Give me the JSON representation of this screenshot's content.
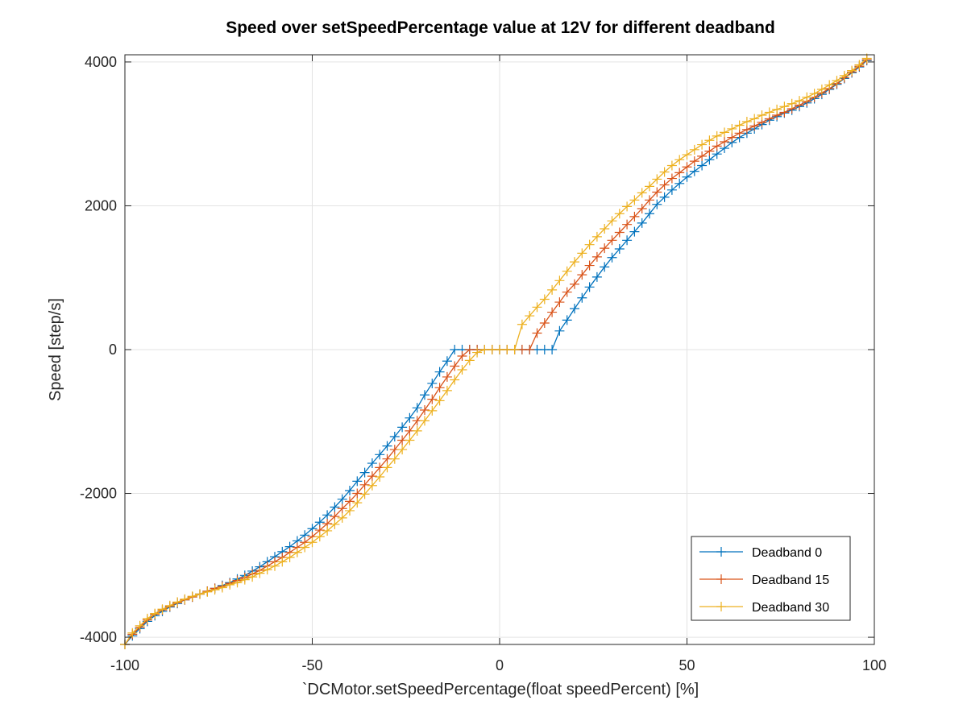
{
  "chart_data": {
    "type": "line",
    "title": "Speed over setSpeedPercentage value at 12V for different deadband",
    "xlabel": "`DCMotor.setSpeedPercentage(float speedPercent) [%]",
    "ylabel": "Speed [step/s]",
    "xlim": [
      -100,
      100
    ],
    "ylim": [
      -4100,
      4100
    ],
    "x_ticks": [
      -100,
      -50,
      0,
      50,
      100
    ],
    "x_tick_labels": [
      "-100",
      "-50",
      "0",
      "50",
      "100"
    ],
    "y_ticks": [
      -4000,
      -2000,
      0,
      2000,
      4000
    ],
    "y_tick_labels": [
      "-4000",
      "-2000",
      "0",
      "2000",
      "4000"
    ],
    "grid": true,
    "legend_position": "bottom-right",
    "marker": "+",
    "series": [
      {
        "name": "Deadband 0",
        "color": "#0072BD",
        "points": [
          [
            -100,
            -4100
          ],
          [
            -98,
            -3980
          ],
          [
            -96,
            -3880
          ],
          [
            -94,
            -3780
          ],
          [
            -92,
            -3700
          ],
          [
            -90,
            -3640
          ],
          [
            -88,
            -3580
          ],
          [
            -86,
            -3530
          ],
          [
            -84,
            -3480
          ],
          [
            -82,
            -3440
          ],
          [
            -80,
            -3400
          ],
          [
            -78,
            -3360
          ],
          [
            -76,
            -3320
          ],
          [
            -74,
            -3280
          ],
          [
            -72,
            -3240
          ],
          [
            -70,
            -3190
          ],
          [
            -68,
            -3140
          ],
          [
            -66,
            -3080
          ],
          [
            -64,
            -3020
          ],
          [
            -62,
            -2950
          ],
          [
            -60,
            -2880
          ],
          [
            -58,
            -2810
          ],
          [
            -56,
            -2740
          ],
          [
            -54,
            -2660
          ],
          [
            -52,
            -2580
          ],
          [
            -50,
            -2490
          ],
          [
            -48,
            -2400
          ],
          [
            -46,
            -2300
          ],
          [
            -44,
            -2190
          ],
          [
            -42,
            -2080
          ],
          [
            -40,
            -1960
          ],
          [
            -38,
            -1830
          ],
          [
            -36,
            -1710
          ],
          [
            -34,
            -1580
          ],
          [
            -32,
            -1460
          ],
          [
            -30,
            -1340
          ],
          [
            -28,
            -1210
          ],
          [
            -26,
            -1080
          ],
          [
            -24,
            -950
          ],
          [
            -22,
            -810
          ],
          [
            -20,
            -630
          ],
          [
            -18,
            -470
          ],
          [
            -16,
            -310
          ],
          [
            -14,
            -160
          ],
          [
            -12,
            0
          ],
          [
            -10,
            0
          ],
          [
            -8,
            0
          ],
          [
            -6,
            0
          ],
          [
            -4,
            0
          ],
          [
            -2,
            0
          ],
          [
            0,
            0
          ],
          [
            2,
            0
          ],
          [
            4,
            0
          ],
          [
            6,
            0
          ],
          [
            8,
            0
          ],
          [
            10,
            0
          ],
          [
            12,
            0
          ],
          [
            14,
            0
          ],
          [
            16,
            260
          ],
          [
            18,
            410
          ],
          [
            20,
            570
          ],
          [
            22,
            720
          ],
          [
            24,
            870
          ],
          [
            26,
            1010
          ],
          [
            28,
            1150
          ],
          [
            30,
            1280
          ],
          [
            32,
            1400
          ],
          [
            34,
            1520
          ],
          [
            36,
            1640
          ],
          [
            38,
            1760
          ],
          [
            40,
            1890
          ],
          [
            42,
            2020
          ],
          [
            44,
            2120
          ],
          [
            46,
            2220
          ],
          [
            48,
            2310
          ],
          [
            50,
            2400
          ],
          [
            52,
            2480
          ],
          [
            54,
            2560
          ],
          [
            56,
            2640
          ],
          [
            58,
            2720
          ],
          [
            60,
            2800
          ],
          [
            62,
            2880
          ],
          [
            64,
            2950
          ],
          [
            66,
            3010
          ],
          [
            68,
            3070
          ],
          [
            70,
            3130
          ],
          [
            72,
            3190
          ],
          [
            74,
            3240
          ],
          [
            76,
            3290
          ],
          [
            78,
            3330
          ],
          [
            80,
            3380
          ],
          [
            82,
            3430
          ],
          [
            84,
            3490
          ],
          [
            86,
            3550
          ],
          [
            88,
            3620
          ],
          [
            90,
            3690
          ],
          [
            92,
            3770
          ],
          [
            94,
            3850
          ],
          [
            96,
            3930
          ],
          [
            98,
            4020
          ]
        ]
      },
      {
        "name": "Deadband 15",
        "color": "#D95319",
        "points": [
          [
            -100,
            -4100
          ],
          [
            -98,
            -3960
          ],
          [
            -96,
            -3860
          ],
          [
            -94,
            -3760
          ],
          [
            -92,
            -3680
          ],
          [
            -90,
            -3620
          ],
          [
            -88,
            -3570
          ],
          [
            -86,
            -3520
          ],
          [
            -84,
            -3480
          ],
          [
            -82,
            -3440
          ],
          [
            -80,
            -3400
          ],
          [
            -78,
            -3360
          ],
          [
            -76,
            -3320
          ],
          [
            -74,
            -3290
          ],
          [
            -72,
            -3250
          ],
          [
            -70,
            -3210
          ],
          [
            -68,
            -3170
          ],
          [
            -66,
            -3120
          ],
          [
            -64,
            -3070
          ],
          [
            -62,
            -3010
          ],
          [
            -60,
            -2950
          ],
          [
            -58,
            -2890
          ],
          [
            -56,
            -2820
          ],
          [
            -54,
            -2750
          ],
          [
            -52,
            -2680
          ],
          [
            -50,
            -2600
          ],
          [
            -48,
            -2510
          ],
          [
            -46,
            -2420
          ],
          [
            -44,
            -2320
          ],
          [
            -42,
            -2210
          ],
          [
            -40,
            -2110
          ],
          [
            -38,
            -2000
          ],
          [
            -36,
            -1880
          ],
          [
            -34,
            -1760
          ],
          [
            -32,
            -1640
          ],
          [
            -30,
            -1520
          ],
          [
            -28,
            -1390
          ],
          [
            -26,
            -1260
          ],
          [
            -24,
            -1130
          ],
          [
            -22,
            -990
          ],
          [
            -20,
            -840
          ],
          [
            -18,
            -690
          ],
          [
            -16,
            -530
          ],
          [
            -14,
            -380
          ],
          [
            -12,
            -230
          ],
          [
            -10,
            -90
          ],
          [
            -8,
            0
          ],
          [
            -6,
            0
          ],
          [
            -4,
            0
          ],
          [
            -2,
            0
          ],
          [
            0,
            0
          ],
          [
            2,
            0
          ],
          [
            4,
            0
          ],
          [
            6,
            0
          ],
          [
            8,
            0
          ],
          [
            10,
            230
          ],
          [
            12,
            370
          ],
          [
            14,
            520
          ],
          [
            16,
            660
          ],
          [
            18,
            800
          ],
          [
            20,
            910
          ],
          [
            22,
            1040
          ],
          [
            24,
            1170
          ],
          [
            26,
            1290
          ],
          [
            28,
            1410
          ],
          [
            30,
            1520
          ],
          [
            32,
            1630
          ],
          [
            34,
            1740
          ],
          [
            36,
            1850
          ],
          [
            38,
            1960
          ],
          [
            40,
            2080
          ],
          [
            42,
            2190
          ],
          [
            44,
            2290
          ],
          [
            46,
            2380
          ],
          [
            48,
            2460
          ],
          [
            50,
            2540
          ],
          [
            52,
            2620
          ],
          [
            54,
            2690
          ],
          [
            56,
            2760
          ],
          [
            58,
            2830
          ],
          [
            60,
            2890
          ],
          [
            62,
            2950
          ],
          [
            64,
            3010
          ],
          [
            66,
            3060
          ],
          [
            68,
            3110
          ],
          [
            70,
            3160
          ],
          [
            72,
            3210
          ],
          [
            74,
            3260
          ],
          [
            76,
            3300
          ],
          [
            78,
            3350
          ],
          [
            80,
            3400
          ],
          [
            82,
            3450
          ],
          [
            84,
            3510
          ],
          [
            86,
            3570
          ],
          [
            88,
            3630
          ],
          [
            90,
            3700
          ],
          [
            92,
            3780
          ],
          [
            94,
            3860
          ],
          [
            96,
            3940
          ],
          [
            98,
            4030
          ]
        ]
      },
      {
        "name": "Deadband 30",
        "color": "#EDB120",
        "points": [
          [
            -100,
            -4100
          ],
          [
            -98,
            -3940
          ],
          [
            -96,
            -3840
          ],
          [
            -94,
            -3740
          ],
          [
            -92,
            -3670
          ],
          [
            -90,
            -3610
          ],
          [
            -88,
            -3560
          ],
          [
            -86,
            -3510
          ],
          [
            -84,
            -3470
          ],
          [
            -82,
            -3430
          ],
          [
            -80,
            -3400
          ],
          [
            -78,
            -3370
          ],
          [
            -76,
            -3340
          ],
          [
            -74,
            -3310
          ],
          [
            -72,
            -3270
          ],
          [
            -70,
            -3240
          ],
          [
            -68,
            -3200
          ],
          [
            -66,
            -3160
          ],
          [
            -64,
            -3110
          ],
          [
            -62,
            -3060
          ],
          [
            -60,
            -3010
          ],
          [
            -58,
            -2950
          ],
          [
            -56,
            -2890
          ],
          [
            -54,
            -2820
          ],
          [
            -52,
            -2750
          ],
          [
            -50,
            -2680
          ],
          [
            -48,
            -2600
          ],
          [
            -46,
            -2520
          ],
          [
            -44,
            -2430
          ],
          [
            -42,
            -2340
          ],
          [
            -40,
            -2240
          ],
          [
            -38,
            -2130
          ],
          [
            -36,
            -2010
          ],
          [
            -34,
            -1890
          ],
          [
            -32,
            -1770
          ],
          [
            -30,
            -1640
          ],
          [
            -28,
            -1520
          ],
          [
            -26,
            -1390
          ],
          [
            -24,
            -1260
          ],
          [
            -22,
            -1130
          ],
          [
            -20,
            -990
          ],
          [
            -18,
            -850
          ],
          [
            -16,
            -710
          ],
          [
            -14,
            -570
          ],
          [
            -12,
            -420
          ],
          [
            -10,
            -280
          ],
          [
            -8,
            -150
          ],
          [
            -6,
            -40
          ],
          [
            -4,
            0
          ],
          [
            -2,
            0
          ],
          [
            0,
            0
          ],
          [
            2,
            0
          ],
          [
            4,
            0
          ],
          [
            6,
            350
          ],
          [
            8,
            470
          ],
          [
            10,
            590
          ],
          [
            12,
            700
          ],
          [
            14,
            830
          ],
          [
            16,
            960
          ],
          [
            18,
            1090
          ],
          [
            20,
            1220
          ],
          [
            22,
            1340
          ],
          [
            24,
            1460
          ],
          [
            26,
            1570
          ],
          [
            28,
            1680
          ],
          [
            30,
            1790
          ],
          [
            32,
            1890
          ],
          [
            34,
            1990
          ],
          [
            36,
            2080
          ],
          [
            38,
            2180
          ],
          [
            40,
            2270
          ],
          [
            42,
            2370
          ],
          [
            44,
            2470
          ],
          [
            46,
            2560
          ],
          [
            48,
            2640
          ],
          [
            50,
            2710
          ],
          [
            52,
            2780
          ],
          [
            54,
            2850
          ],
          [
            56,
            2910
          ],
          [
            58,
            2970
          ],
          [
            60,
            3020
          ],
          [
            62,
            3070
          ],
          [
            64,
            3120
          ],
          [
            66,
            3170
          ],
          [
            68,
            3210
          ],
          [
            70,
            3260
          ],
          [
            72,
            3300
          ],
          [
            74,
            3340
          ],
          [
            76,
            3380
          ],
          [
            78,
            3420
          ],
          [
            80,
            3460
          ],
          [
            82,
            3510
          ],
          [
            84,
            3560
          ],
          [
            86,
            3620
          ],
          [
            88,
            3680
          ],
          [
            90,
            3740
          ],
          [
            92,
            3810
          ],
          [
            94,
            3880
          ],
          [
            96,
            3960
          ],
          [
            98,
            4050
          ]
        ]
      }
    ]
  }
}
